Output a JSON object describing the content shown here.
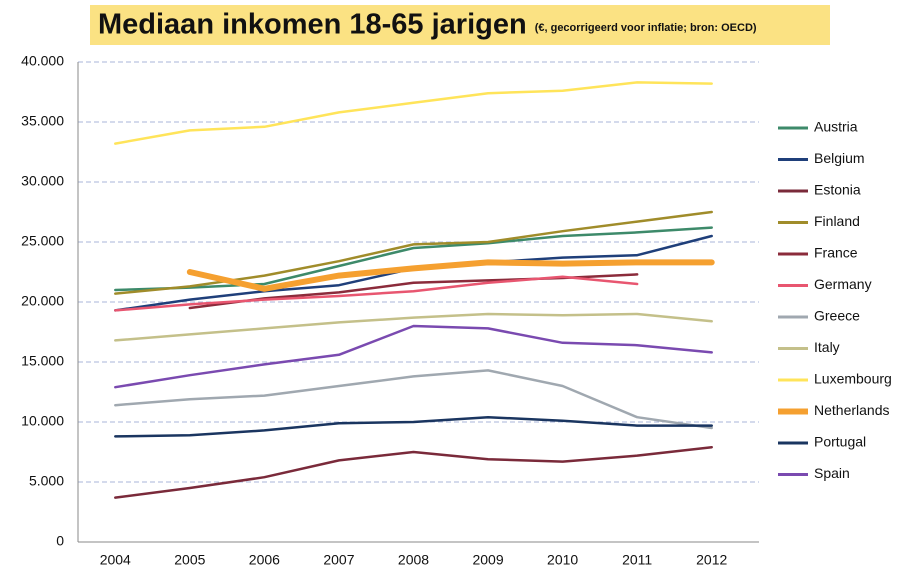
{
  "chart_data": {
    "type": "line",
    "title": "Mediaan inkomen 18-65 jarigen",
    "subtitle": "(€, gecorrigeerd voor inflatie;  bron: OECD)",
    "categories": [
      "2004",
      "2005",
      "2006",
      "2007",
      "2008",
      "2009",
      "2010",
      "2011",
      "2012"
    ],
    "ylim": [
      0,
      40000
    ],
    "yticks": [
      0,
      {
        "value": 5000,
        "label": "5.000"
      },
      {
        "value": 10000,
        "label": "10.000"
      },
      {
        "value": 15000,
        "label": "15.000"
      },
      {
        "value": 20000,
        "label": "20.000"
      },
      {
        "value": 25000,
        "label": "25.000"
      },
      {
        "value": 30000,
        "label": "30.000"
      },
      {
        "value": 35000,
        "label": "35.000"
      },
      {
        "value": 40000,
        "label": "40.000"
      }
    ],
    "grid": true,
    "legend": "right",
    "series": [
      {
        "name": "Austria",
        "color": "#3d8a6a",
        "values": [
          21000,
          21200,
          21500,
          23000,
          24500,
          24900,
          25500,
          25800,
          26200
        ]
      },
      {
        "name": "Belgium",
        "color": "#1f3f7a",
        "values": [
          19300,
          20200,
          20900,
          21400,
          22800,
          23300,
          23700,
          23900,
          25500
        ]
      },
      {
        "name": "Estonia",
        "color": "#7a2a3a",
        "values": [
          3700,
          4500,
          5400,
          6800,
          7500,
          6900,
          6700,
          7200,
          7900
        ]
      },
      {
        "name": "Finland",
        "color": "#a08c2a",
        "values": [
          20700,
          21300,
          22200,
          23400,
          24800,
          25000,
          25900,
          26700,
          27500
        ]
      },
      {
        "name": "France",
        "color": "#8b2b3b",
        "values": [
          null,
          19500,
          20300,
          20800,
          21600,
          21800,
          22000,
          22300,
          null
        ]
      },
      {
        "name": "Germany",
        "color": "#e85670",
        "values": [
          19300,
          19800,
          20200,
          20500,
          20900,
          21600,
          22100,
          21500,
          null
        ]
      },
      {
        "name": "Greece",
        "color": "#a0a8b0",
        "values": [
          11400,
          11900,
          12200,
          13000,
          13800,
          14300,
          13000,
          10400,
          9500
        ]
      },
      {
        "name": "Italy",
        "color": "#c4c08a",
        "values": [
          16800,
          17300,
          17800,
          18300,
          18700,
          19000,
          18900,
          19000,
          18400
        ]
      },
      {
        "name": "Luxembourg",
        "color": "#ffe45a",
        "values": [
          33200,
          34300,
          34600,
          35800,
          36600,
          37400,
          37600,
          38300,
          38200
        ]
      },
      {
        "name": "Netherlands",
        "color": "#f5a030",
        "highlight": true,
        "values": [
          null,
          22500,
          21100,
          22200,
          22800,
          23300,
          23200,
          23300,
          23300
        ]
      },
      {
        "name": "Portugal",
        "color": "#1a3560",
        "values": [
          8800,
          8900,
          9300,
          9900,
          10000,
          10400,
          10100,
          9700,
          9700
        ]
      },
      {
        "name": "Spain",
        "color": "#7a4ab0",
        "values": [
          12900,
          13900,
          14800,
          15600,
          18000,
          17800,
          16600,
          16400,
          15800
        ]
      }
    ]
  }
}
